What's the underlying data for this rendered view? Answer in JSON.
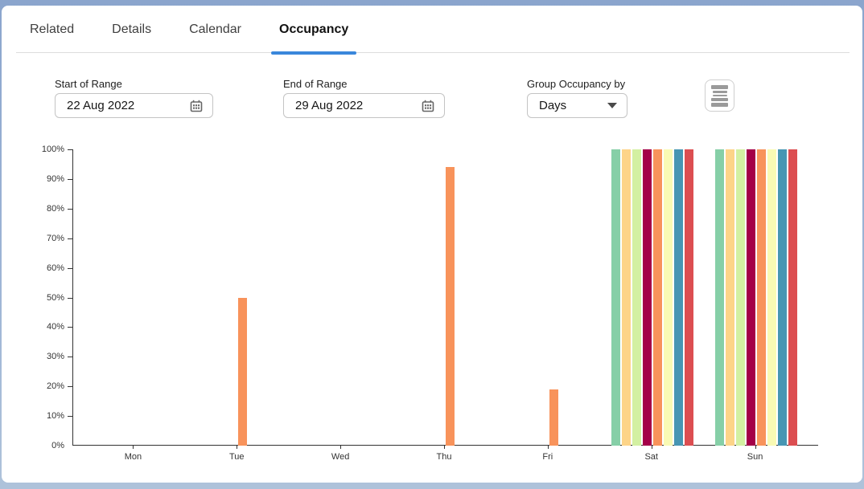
{
  "tabs": [
    {
      "label": "Related",
      "active": false
    },
    {
      "label": "Details",
      "active": false
    },
    {
      "label": "Calendar",
      "active": false
    },
    {
      "label": "Occupancy",
      "active": true
    }
  ],
  "filters": {
    "start": {
      "label": "Start of Range",
      "value": "22 Aug 2022",
      "icon": "calendar-icon"
    },
    "end": {
      "label": "End of Range",
      "value": "29 Aug 2022",
      "icon": "calendar-icon"
    },
    "group": {
      "label": "Group Occupancy by",
      "value": "Days",
      "icon": "chevron-down-icon"
    }
  },
  "toolbar": {
    "context_menu_icon": "rows-menu-icon"
  },
  "colors": {
    "accent": "#3A87DB",
    "axis": "#333333",
    "frame": "#8BA5CD"
  },
  "chart_data": {
    "type": "bar",
    "title": "",
    "xlabel": "",
    "ylabel": "",
    "ylim": [
      0,
      100
    ],
    "y_tick_step": 10,
    "y_tick_suffix": "%",
    "grid": false,
    "legend": "none",
    "categories": [
      "Mon",
      "Tue",
      "Wed",
      "Thu",
      "Fri",
      "Sat",
      "Sun"
    ],
    "series": [
      {
        "name": "series-1",
        "color": "#86CFA7",
        "values": [
          0,
          0,
          0,
          0,
          0,
          100,
          100
        ]
      },
      {
        "name": "series-2",
        "color": "#FDD488",
        "values": [
          0,
          0,
          0,
          0,
          0,
          100,
          100
        ]
      },
      {
        "name": "series-3",
        "color": "#D3F0A2",
        "values": [
          0,
          0,
          0,
          0,
          0,
          100,
          100
        ]
      },
      {
        "name": "series-4",
        "color": "#A40048",
        "values": [
          0,
          0,
          0,
          0,
          0,
          100,
          100
        ]
      },
      {
        "name": "series-5",
        "color": "#F8935B",
        "values": [
          0,
          50,
          0,
          94,
          19,
          100,
          100
        ]
      },
      {
        "name": "series-6",
        "color": "#F9FAB4",
        "values": [
          0,
          0,
          0,
          0,
          0,
          100,
          100
        ]
      },
      {
        "name": "series-7",
        "color": "#4796B3",
        "values": [
          0,
          0,
          0,
          0,
          0,
          100,
          100
        ]
      },
      {
        "name": "series-8",
        "color": "#DC4E51",
        "values": [
          0,
          0,
          0,
          0,
          0,
          100,
          100
        ]
      }
    ]
  }
}
